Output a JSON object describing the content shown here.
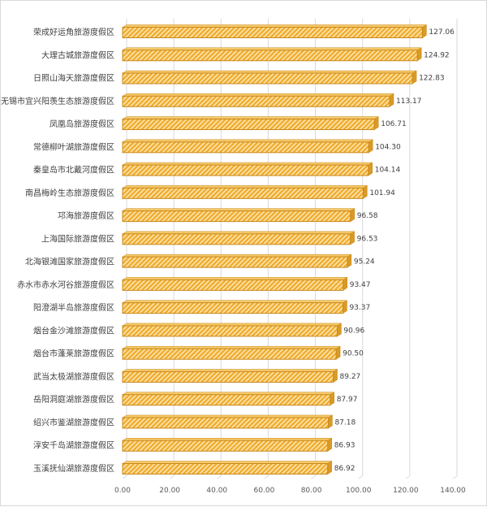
{
  "chart_data": {
    "type": "bar",
    "orientation": "horizontal",
    "style": "3d-clustered-bar-hatched",
    "categories": [
      "荣成好运角旅游度假区",
      "大理古城旅游度假区",
      "日照山海天旅游度假区",
      "无锡市宜兴阳羡生态旅游度假区",
      "凤凰岛旅游度假区",
      "常德柳叶湖旅游度假区",
      "秦皇岛市北戴河度假区",
      "南昌梅岭生态旅游度假区",
      "邛海旅游度假区",
      "上海国际旅游度假区",
      "北海银滩国家旅游度假区",
      "赤水市赤水河谷旅游度假区",
      "阳澄湖半岛旅游度假区",
      "烟台金沙滩旅游度假区",
      "烟台市蓬莱旅游度假区",
      "武当太极湖旅游度假区",
      "岳阳洞庭湖旅游度假区",
      "绍兴市鉴湖旅游度假区",
      "淳安千岛湖旅游度假区",
      "玉溪抚仙湖旅游度假区"
    ],
    "values": [
      127.06,
      124.92,
      122.83,
      113.17,
      106.71,
      104.3,
      104.14,
      101.94,
      96.58,
      96.53,
      95.24,
      93.47,
      93.37,
      90.96,
      90.5,
      89.27,
      87.97,
      87.18,
      86.93,
      86.92
    ],
    "value_labels": [
      "127.06",
      "124.92",
      "122.83",
      "113.17",
      "106.71",
      "104.30",
      "104.14",
      "101.94",
      "96.58",
      "96.53",
      "95.24",
      "93.47",
      "93.37",
      "90.96",
      "90.50",
      "89.27",
      "87.97",
      "87.18",
      "86.93",
      "86.92"
    ],
    "xlim": [
      0,
      140
    ],
    "x_ticks": [
      "0.00",
      "20.00",
      "40.00",
      "60.00",
      "80.00",
      "100.00",
      "120.00",
      "140.00"
    ],
    "grid": true,
    "legend": "none",
    "colors": {
      "bar": "#f2b233",
      "hatch": "#fbe7b8",
      "edge": "#c8891c",
      "grid": "#d9d9d9"
    }
  }
}
